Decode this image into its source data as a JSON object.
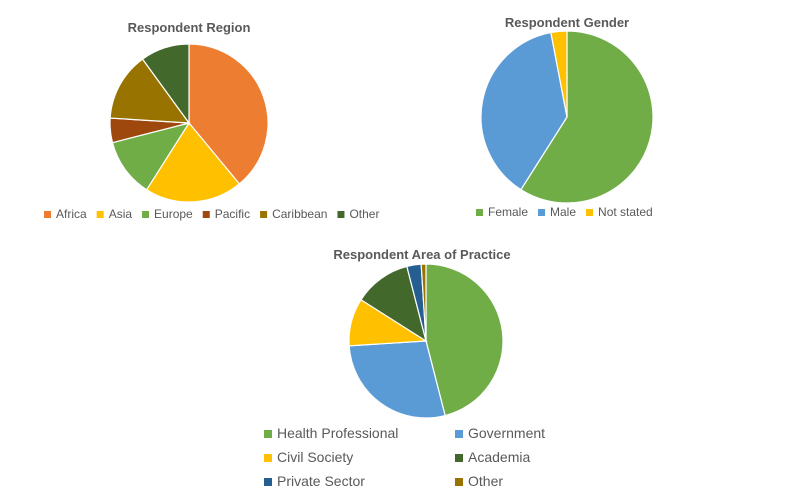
{
  "chart_data": [
    {
      "type": "pie",
      "title": "Respondent Region",
      "legend_position": "bottom",
      "categories": [
        "Africa",
        "Asia",
        "Europe",
        "Pacific",
        "Caribbean",
        "Other"
      ],
      "values": [
        39,
        20,
        12,
        5,
        14,
        10
      ],
      "colors": [
        "#ED7D31",
        "#FFC000",
        "#70AD47",
        "#9E480E",
        "#997300",
        "#43682B"
      ]
    },
    {
      "type": "pie",
      "title": "Respondent Gender",
      "legend_position": "bottom",
      "categories": [
        "Female",
        "Male",
        "Not stated"
      ],
      "values": [
        59,
        38,
        3
      ],
      "colors": [
        "#70AD47",
        "#5B9BD5",
        "#FFC000"
      ]
    },
    {
      "type": "pie",
      "title": "Respondent Area of Practice",
      "legend_position": "bottom",
      "categories": [
        "Health Professional",
        "Government",
        "Civil Society",
        "Academia",
        "Private Sector",
        "Other"
      ],
      "values": [
        46,
        28,
        10,
        12,
        3,
        1
      ],
      "colors": [
        "#70AD47",
        "#5B9BD5",
        "#FFC000",
        "#43682B",
        "#255E91",
        "#997300"
      ]
    }
  ]
}
